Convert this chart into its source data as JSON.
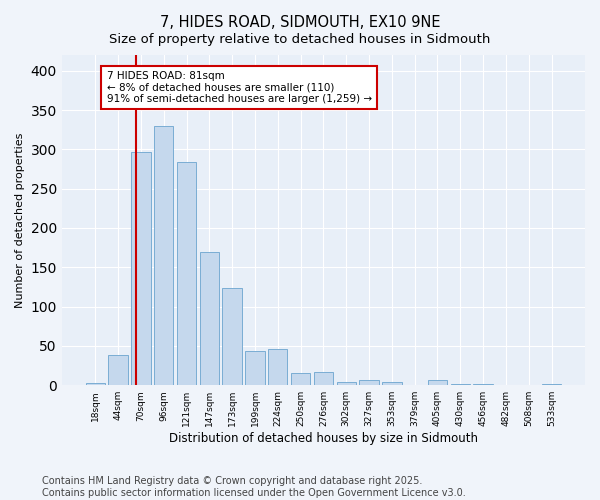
{
  "title": "7, HIDES ROAD, SIDMOUTH, EX10 9NE",
  "subtitle": "Size of property relative to detached houses in Sidmouth",
  "xlabel": "Distribution of detached houses by size in Sidmouth",
  "ylabel": "Number of detached properties",
  "categories": [
    "18sqm",
    "44sqm",
    "70sqm",
    "96sqm",
    "121sqm",
    "147sqm",
    "173sqm",
    "199sqm",
    "224sqm",
    "250sqm",
    "276sqm",
    "302sqm",
    "327sqm",
    "353sqm",
    "379sqm",
    "405sqm",
    "430sqm",
    "456sqm",
    "482sqm",
    "508sqm",
    "533sqm"
  ],
  "values": [
    3,
    39,
    297,
    330,
    284,
    169,
    124,
    44,
    46,
    16,
    17,
    4,
    6,
    4,
    0,
    6,
    2,
    1,
    0,
    0,
    2
  ],
  "bar_color": "#c5d8ed",
  "bar_edge_color": "#7aadd4",
  "vline_color": "#cc0000",
  "annotation_text": "7 HIDES ROAD: 81sqm\n← 8% of detached houses are smaller (110)\n91% of semi-detached houses are larger (1,259) →",
  "annotation_box_color": "#ffffff",
  "annotation_box_edge": "#cc0000",
  "ylim": [
    0,
    420
  ],
  "yticks": [
    0,
    50,
    100,
    150,
    200,
    250,
    300,
    350,
    400
  ],
  "bg_color": "#f0f4fa",
  "plot_bg_color": "#e8eff8",
  "footer": "Contains HM Land Registry data © Crown copyright and database right 2025.\nContains public sector information licensed under the Open Government Licence v3.0.",
  "footer_fontsize": 7,
  "title_fontsize": 10.5,
  "subtitle_fontsize": 9.5,
  "vline_xindex": 1.77
}
